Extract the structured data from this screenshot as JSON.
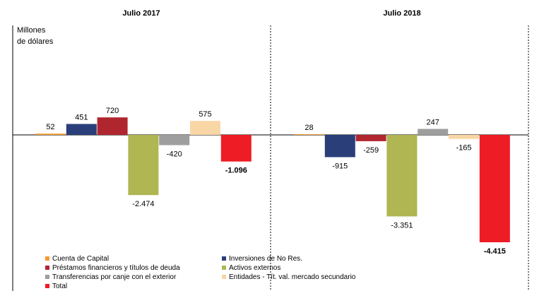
{
  "chart_data": {
    "type": "bar",
    "unit_label": [
      "Millones",
      "de dólares"
    ],
    "value_scale": [
      -4415,
      720
    ],
    "panels": [
      {
        "title": "Julio 2017",
        "bars": [
          {
            "series": "Cuenta de Capital",
            "value": 52,
            "label": "52",
            "bold": false
          },
          {
            "series": "Inversiones de No Res.",
            "value": 451,
            "label": "451",
            "bold": false
          },
          {
            "series": "Préstamos financieros y títulos de deuda",
            "value": 720,
            "label": "720",
            "bold": false
          },
          {
            "series": "Activos externos",
            "value": -2474,
            "label": "-2.474",
            "bold": false
          },
          {
            "series": "Transferencias por canje con el exterior",
            "value": -420,
            "label": "-420",
            "bold": false
          },
          {
            "series": "Entidades - Tít. val. mercado secundario",
            "value": 575,
            "label": "575",
            "bold": false
          },
          {
            "series": "Total",
            "value": -1096,
            "label": "-1.096",
            "bold": true
          }
        ]
      },
      {
        "title": "Julio 2018",
        "bars": [
          {
            "series": "Cuenta de Capital",
            "value": 28,
            "label": "28",
            "bold": false
          },
          {
            "series": "Inversiones de No Res.",
            "value": -915,
            "label": "-915",
            "bold": false
          },
          {
            "series": "Préstamos financieros y títulos de deuda",
            "value": -259,
            "label": "-259",
            "bold": false
          },
          {
            "series": "Activos externos",
            "value": -3351,
            "label": "-3.351",
            "bold": false
          },
          {
            "series": "Transferencias por canje con el exterior",
            "value": 247,
            "label": "247",
            "bold": false
          },
          {
            "series": "Entidades - Tít. val. mercado secundario",
            "value": -165,
            "label": "-165",
            "bold": false
          },
          {
            "series": "Total",
            "value": -4415,
            "label": "-4.415",
            "bold": true
          }
        ]
      }
    ],
    "legend": [
      {
        "name": "Cuenta de Capital",
        "color": "#F59A32"
      },
      {
        "name": "Inversiones de No Res.",
        "color": "#2A3F7A"
      },
      {
        "name": "Préstamos financieros y títulos de deuda",
        "color": "#B0262F"
      },
      {
        "name": "Activos externos",
        "color": "#AFB652"
      },
      {
        "name": "Transferencias por canje con el exterior",
        "color": "#9E9E9E"
      },
      {
        "name": "Entidades - Tít. val. mercado secundario",
        "color": "#F9D6A5"
      },
      {
        "name": "Total",
        "color": "#EE1C25"
      }
    ]
  }
}
